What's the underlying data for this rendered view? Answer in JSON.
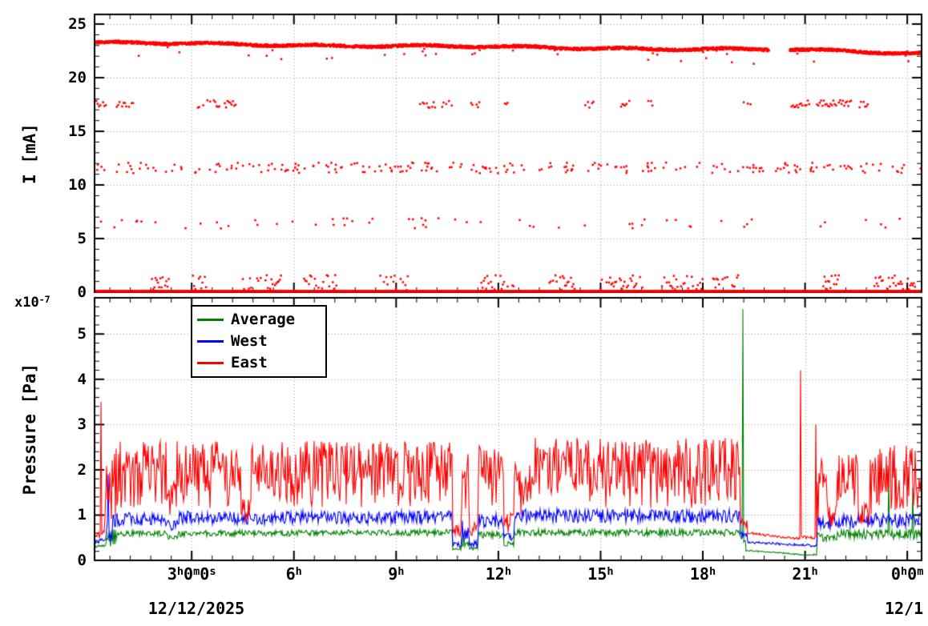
{
  "figure": {
    "background": "#ffffff",
    "axis_color": "#000000",
    "grid_color": "#9a9a9a"
  },
  "x_axis": {
    "unit": "hours",
    "lim": [
      0.15,
      24.42
    ],
    "major_ticks": [
      3,
      6,
      9,
      12,
      15,
      18,
      21,
      24
    ],
    "minor_step": 0.6,
    "tick_labels": [
      {
        "text": "3h0m0s",
        "parts": [
          {
            "t": "3"
          },
          {
            "t": "h",
            "sup": true
          },
          {
            "t": "0"
          },
          {
            "t": "m",
            "sup": true
          },
          {
            "t": "0"
          },
          {
            "t": "s",
            "sup": true
          }
        ]
      },
      {
        "text": "6h",
        "parts": [
          {
            "t": "6"
          },
          {
            "t": "h",
            "sup": true
          }
        ]
      },
      {
        "text": "9h",
        "parts": [
          {
            "t": "9"
          },
          {
            "t": "h",
            "sup": true
          }
        ]
      },
      {
        "text": "12h",
        "parts": [
          {
            "t": "12"
          },
          {
            "t": "h",
            "sup": true
          }
        ]
      },
      {
        "text": "15h",
        "parts": [
          {
            "t": "15"
          },
          {
            "t": "h",
            "sup": true
          }
        ]
      },
      {
        "text": "18h",
        "parts": [
          {
            "t": "18"
          },
          {
            "t": "h",
            "sup": true
          }
        ]
      },
      {
        "text": "21h",
        "parts": [
          {
            "t": "21"
          },
          {
            "t": "h",
            "sup": true
          }
        ]
      },
      {
        "text": "0h0m",
        "parts": [
          {
            "t": "0"
          },
          {
            "t": "h",
            "sup": true
          },
          {
            "t": "0"
          },
          {
            "t": "m",
            "sup": true
          }
        ]
      }
    ],
    "date_left": "12/12/2025",
    "date_right": "12/1"
  },
  "chart_data": [
    {
      "type": "scatter",
      "panel": "top",
      "ylabel": "I [mA]",
      "ylim": [
        0,
        25.9
      ],
      "y_ticks": [
        0,
        5,
        10,
        15,
        20,
        25
      ],
      "y_minor_step": 1,
      "xlim": [
        0.15,
        24.42
      ],
      "marker_color": "#ff0000",
      "baseline_y": 0.1,
      "bands": [
        {
          "kind": "dense",
          "step": 0.009,
          "spread": 0.13,
          "outlier_prob": 0.012,
          "outlier_drop": 1.3,
          "segments": [
            [
              0.15,
              19.95,
              23.25,
              22.6
            ],
            [
              20.55,
              24.42,
              22.6,
              22.3
            ]
          ]
        },
        {
          "kind": "clusters",
          "y": 17.55,
          "spread": 0.35,
          "step": 0.04,
          "keep_prob": 0.8,
          "clusters": [
            [
              0.2,
              0.5
            ],
            [
              0.8,
              1.3
            ],
            [
              3.1,
              3.55
            ],
            [
              3.65,
              4.3
            ],
            [
              9.7,
              10.15
            ],
            [
              10.35,
              10.65
            ],
            [
              11.2,
              11.45
            ],
            [
              12.15,
              12.3
            ],
            [
              14.55,
              14.8
            ],
            [
              15.6,
              15.85
            ],
            [
              16.4,
              16.55
            ],
            [
              19.2,
              19.4
            ],
            [
              20.6,
              21.15
            ],
            [
              21.35,
              22.35
            ],
            [
              22.6,
              22.85
            ]
          ]
        },
        {
          "kind": "uniform",
          "count": 230,
          "y": 11.6,
          "spread": 0.5,
          "x0": 0.2,
          "x1": 24.4
        },
        {
          "kind": "uniform",
          "count": 60,
          "y": 6.4,
          "spread": 0.5,
          "x0": 0.3,
          "x1": 24.3
        },
        {
          "kind": "clusters",
          "y": 0.9,
          "spread": 0.7,
          "step": 0.035,
          "keep_prob": 0.7,
          "clusters": [
            [
              1.8,
              2.35
            ],
            [
              3.0,
              3.45
            ],
            [
              4.5,
              5.65
            ],
            [
              6.3,
              7.25
            ],
            [
              8.5,
              9.35
            ],
            [
              11.5,
              12.45
            ],
            [
              13.5,
              14.25
            ],
            [
              15.0,
              16.25
            ],
            [
              16.8,
              18.05
            ],
            [
              18.3,
              19.05
            ],
            [
              21.5,
              22.05
            ],
            [
              23.0,
              24.25
            ]
          ]
        }
      ]
    },
    {
      "type": "line",
      "panel": "bottom",
      "ylabel": "Pressure [Pa]",
      "scale_prefix": "x10",
      "scale_exp": "-7",
      "ylim": [
        0,
        5.8
      ],
      "y_ticks": [
        0,
        1,
        2,
        3,
        4,
        5
      ],
      "y_minor_step": 0.2,
      "xlim": [
        0.15,
        24.42
      ],
      "legend_position": "top-left-inside",
      "series": [
        {
          "name": "Average",
          "color": "#008000",
          "noise": "sym",
          "segments": [
            [
              0.15,
              0.5,
              0.3,
              0.33,
              0.05
            ],
            [
              0.5,
              0.8,
              0.45,
              0.5,
              0.4
            ],
            [
              0.8,
              2.3,
              0.58,
              0.58,
              0.12
            ],
            [
              2.3,
              2.6,
              0.5,
              0.5,
              0.1
            ],
            [
              2.6,
              10.65,
              0.58,
              0.6,
              0.13
            ],
            [
              10.65,
              10.9,
              0.25,
              0.24,
              0.06
            ],
            [
              10.9,
              11.15,
              0.42,
              0.42,
              0.3
            ],
            [
              11.15,
              11.4,
              0.25,
              0.25,
              0.08
            ],
            [
              11.4,
              12.15,
              0.55,
              0.55,
              0.15
            ],
            [
              12.15,
              12.45,
              0.35,
              0.35,
              0.1
            ],
            [
              12.45,
              19.1,
              0.6,
              0.6,
              0.15
            ],
            [
              19.1,
              19.25,
              0.5,
              0.4,
              0.1
            ],
            [
              19.25,
              20.85,
              0.22,
              0.13,
              0.02
            ],
            [
              20.85,
              21.35,
              0.12,
              0.12,
              0.03
            ],
            [
              21.35,
              21.95,
              0.5,
              0.5,
              0.2
            ],
            [
              21.95,
              24.42,
              0.55,
              0.55,
              0.22
            ]
          ],
          "spikes": [
            [
              19.17,
              5.55
            ],
            [
              23.45,
              1.85
            ],
            [
              24.15,
              1.6
            ]
          ]
        },
        {
          "name": "West",
          "color": "#0000ff",
          "noise": "sym",
          "segments": [
            [
              0.15,
              0.5,
              0.4,
              0.45,
              0.1
            ],
            [
              0.5,
              0.8,
              0.6,
              0.7,
              0.6
            ],
            [
              0.8,
              2.3,
              0.88,
              0.88,
              0.3
            ],
            [
              2.3,
              2.6,
              0.75,
              0.75,
              0.25
            ],
            [
              2.6,
              10.65,
              0.9,
              0.92,
              0.3
            ],
            [
              10.65,
              10.9,
              0.35,
              0.33,
              0.1
            ],
            [
              10.9,
              11.15,
              0.6,
              0.6,
              0.5
            ],
            [
              11.15,
              11.4,
              0.35,
              0.35,
              0.15
            ],
            [
              11.4,
              12.15,
              0.85,
              0.85,
              0.3
            ],
            [
              12.15,
              12.45,
              0.5,
              0.5,
              0.2
            ],
            [
              12.45,
              19.1,
              0.95,
              0.95,
              0.3
            ],
            [
              19.1,
              19.3,
              0.6,
              0.5,
              0.2
            ],
            [
              19.3,
              20.85,
              0.4,
              0.33,
              0.04
            ],
            [
              20.85,
              21.35,
              0.33,
              0.32,
              0.05
            ],
            [
              21.35,
              21.95,
              0.8,
              0.8,
              0.3
            ],
            [
              21.95,
              24.42,
              0.85,
              0.85,
              0.32
            ]
          ],
          "spikes": [
            [
              0.55,
              1.9
            ]
          ]
        },
        {
          "name": "East",
          "color": "#ff0000",
          "noise": "up",
          "segments": [
            [
              0.15,
              0.45,
              0.45,
              0.55,
              0.15
            ],
            [
              0.45,
              0.8,
              0.6,
              0.9,
              1.6
            ],
            [
              0.8,
              2.25,
              1.15,
              1.15,
              1.5
            ],
            [
              2.25,
              2.55,
              0.95,
              0.95,
              0.8
            ],
            [
              2.55,
              4.45,
              1.15,
              1.15,
              1.5
            ],
            [
              4.45,
              4.75,
              0.85,
              0.85,
              0.5
            ],
            [
              4.75,
              10.65,
              1.15,
              1.15,
              1.52
            ],
            [
              10.65,
              10.9,
              0.55,
              0.5,
              0.25
            ],
            [
              10.9,
              11.15,
              0.85,
              0.85,
              1.5
            ],
            [
              11.15,
              11.4,
              0.55,
              0.55,
              0.3
            ],
            [
              11.4,
              12.15,
              1.1,
              1.1,
              1.45
            ],
            [
              12.15,
              12.45,
              0.6,
              0.6,
              0.45
            ],
            [
              12.45,
              13.05,
              0.95,
              0.95,
              1.3
            ],
            [
              13.05,
              19.1,
              1.15,
              1.15,
              1.55
            ],
            [
              19.1,
              19.3,
              0.7,
              0.6,
              0.35
            ],
            [
              19.3,
              20.85,
              0.58,
              0.45,
              0.05
            ],
            [
              20.85,
              21.35,
              0.48,
              0.45,
              0.07
            ],
            [
              21.35,
              21.65,
              0.9,
              0.9,
              1.4
            ],
            [
              21.65,
              21.95,
              0.75,
              0.75,
              0.5
            ],
            [
              21.95,
              22.55,
              1.0,
              1.0,
              1.5
            ],
            [
              22.55,
              22.9,
              0.8,
              0.8,
              0.45
            ],
            [
              22.9,
              24.42,
              1.0,
              1.0,
              1.55
            ]
          ],
          "spikes": [
            [
              0.33,
              3.5
            ],
            [
              20.88,
              4.2
            ],
            [
              21.32,
              3.0
            ]
          ]
        }
      ]
    }
  ]
}
